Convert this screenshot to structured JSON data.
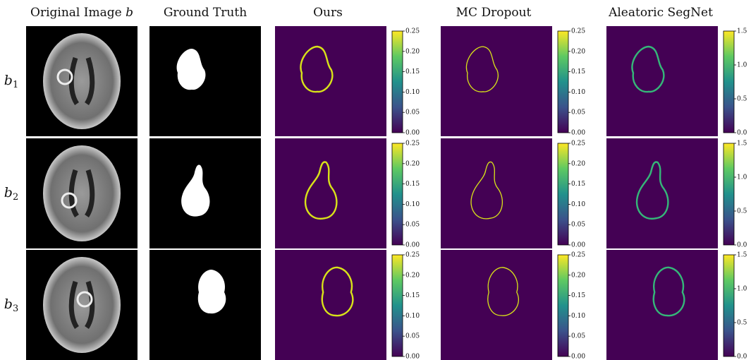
{
  "header": {
    "columns": [
      {
        "text": "Original Image",
        "var": "b"
      },
      {
        "text": "Ground Truth"
      },
      {
        "text": "Ours"
      },
      {
        "text": "MC Dropout"
      },
      {
        "text": "Aleatoric SegNet"
      }
    ]
  },
  "rows": [
    {
      "label": {
        "base": "b",
        "sub": "1"
      }
    },
    {
      "label": {
        "base": "b",
        "sub": "2"
      }
    },
    {
      "label": {
        "base": "b",
        "sub": "3"
      }
    }
  ],
  "colorbars": {
    "ours": [
      "0.00",
      "0.05",
      "0.10",
      "0.15",
      "0.20",
      "0.25"
    ],
    "mc_dropout": [
      "0.00",
      "0.05",
      "0.10",
      "0.15",
      "0.20",
      "0.25"
    ],
    "aleatoric_segnet": [
      "0.0",
      "0.5",
      "1.0",
      "1.5"
    ]
  }
}
